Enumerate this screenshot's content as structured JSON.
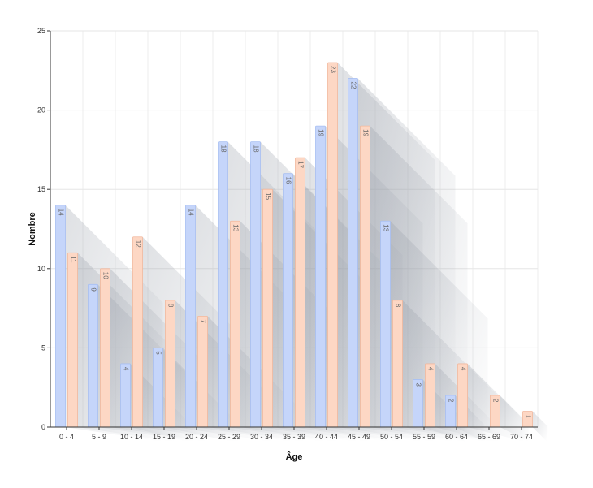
{
  "chart_data": {
    "type": "bar",
    "xlabel": "Âge",
    "ylabel": "Nombre",
    "ylim": [
      0,
      25
    ],
    "yticks": [
      0,
      5,
      10,
      15,
      20,
      25
    ],
    "categories": [
      "0 - 4",
      "5 - 9",
      "10 - 14",
      "15 - 19",
      "20 - 24",
      "25 - 29",
      "30 - 34",
      "35 - 39",
      "40 - 44",
      "45 - 49",
      "50 - 54",
      "55 - 59",
      "60 - 64",
      "65 - 69",
      "70 - 74"
    ],
    "series": [
      {
        "values": [
          14,
          9,
          4,
          5,
          14,
          18,
          18,
          16,
          19,
          22,
          13,
          3,
          2,
          0,
          0
        ],
        "color": "#c5d5fa",
        "stroke": "#a7bff2"
      },
      {
        "values": [
          11,
          10,
          12,
          8,
          7,
          13,
          15,
          17,
          23,
          19,
          8,
          4,
          4,
          2,
          1
        ],
        "color": "#fdd7c4",
        "stroke": "#f2b89d"
      }
    ],
    "grid": true,
    "legend": "none"
  }
}
